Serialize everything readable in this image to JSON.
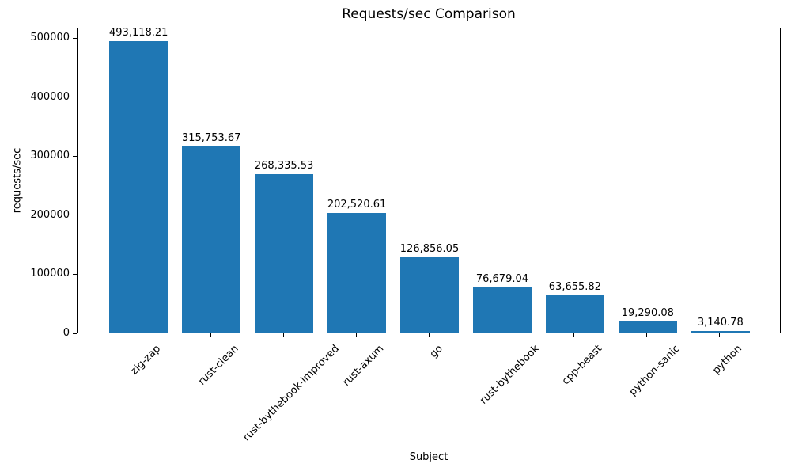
{
  "chart_data": {
    "type": "bar",
    "title": "Requests/sec Comparison",
    "xlabel": "Subject",
    "ylabel": "requests/sec",
    "categories": [
      "zig-zap",
      "rust-clean",
      "rust-bythebook-improved",
      "rust-axum",
      "go",
      "rust-bythebook",
      "cpp-beast",
      "python-sanic",
      "python"
    ],
    "values": [
      493118.21,
      315753.67,
      268335.53,
      202520.61,
      126856.05,
      76679.04,
      63655.82,
      19290.08,
      3140.78
    ],
    "value_labels": [
      "493,118.21",
      "315,753.67",
      "268,335.53",
      "202,520.61",
      "126,856.05",
      "76,679.04",
      "63,655.82",
      "19,290.08",
      "3,140.78"
    ],
    "yticks": [
      0,
      100000,
      200000,
      300000,
      400000,
      500000
    ],
    "ytick_labels": [
      "0",
      "100000",
      "200000",
      "300000",
      "400000",
      "500000"
    ],
    "ylim": [
      0,
      517774
    ],
    "bar_color": "#1f77b4",
    "bar_rel_width": 0.8,
    "grid": false,
    "legend": null
  }
}
